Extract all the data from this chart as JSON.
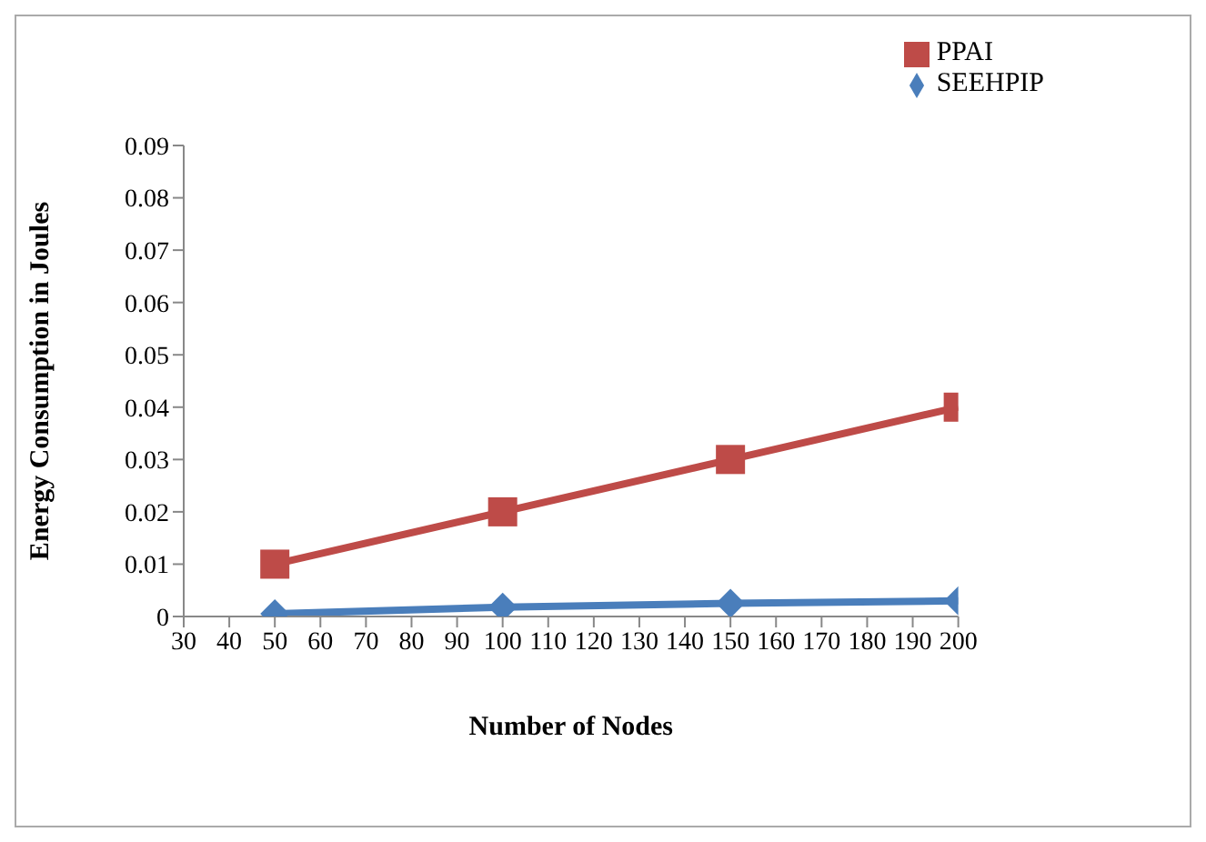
{
  "chart_data": {
    "type": "line",
    "xlabel": "Number of Nodes",
    "ylabel": "Energy Consumption in Joules",
    "x": [
      50,
      100,
      150,
      200
    ],
    "series": [
      {
        "name": "SEEHPIP",
        "color": "#4a7ebb",
        "marker": "diamond",
        "values": [
          0.0005,
          0.0018,
          0.0025,
          0.003
        ]
      },
      {
        "name": "PPAI",
        "color": "#be4b48",
        "marker": "square",
        "values": [
          0.01,
          0.02,
          0.03,
          0.04
        ]
      }
    ],
    "xlim": [
      30,
      200
    ],
    "xticks": [
      30,
      40,
      50,
      60,
      70,
      80,
      90,
      100,
      110,
      120,
      130,
      140,
      150,
      160,
      170,
      180,
      190,
      200
    ],
    "ylim": [
      0,
      0.09
    ],
    "yticks": [
      0,
      0.01,
      0.02,
      0.03,
      0.04,
      0.05,
      0.06,
      0.07,
      0.08,
      0.09
    ],
    "grid": false,
    "legend": "top right"
  }
}
